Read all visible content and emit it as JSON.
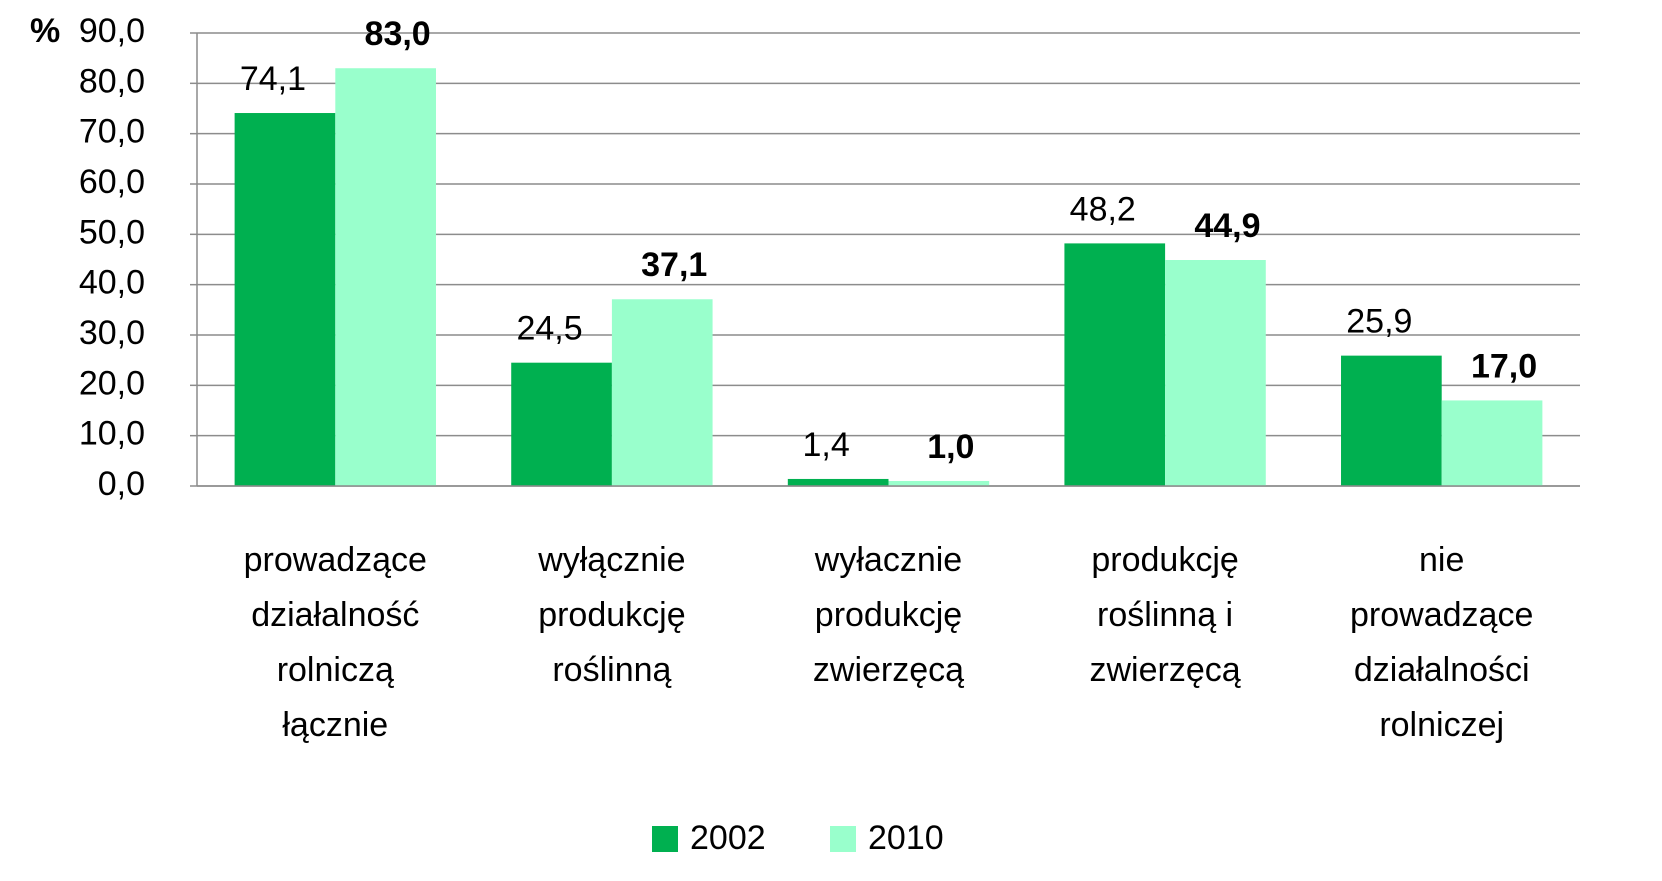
{
  "chart_data": {
    "type": "bar",
    "ylabel": "%",
    "categories": [
      [
        "prowadzące",
        "działalność",
        "rolniczą",
        "łącznie"
      ],
      [
        "wyłącznie",
        "produkcję",
        "roślinną"
      ],
      [
        "wyłacznie",
        "produkcję",
        "zwierzęcą"
      ],
      [
        "produkcję",
        "roślinną i",
        "zwierzęcą"
      ],
      [
        "nie",
        "prowadzące",
        "działalności",
        "rolniczej"
      ]
    ],
    "series": [
      {
        "name": "2002",
        "color": "#00b050",
        "bold_labels": false,
        "values": [
          74.1,
          24.5,
          1.4,
          48.2,
          25.9
        ],
        "value_labels": [
          "74,1",
          "24,5",
          "1,4",
          "48,2",
          "25,9"
        ]
      },
      {
        "name": "2010",
        "color": "#99ffcc",
        "bold_labels": true,
        "values": [
          83.0,
          37.1,
          1.0,
          44.9,
          17.0
        ],
        "value_labels": [
          "83,0",
          "37,1",
          "1,0",
          "44,9",
          "17,0"
        ]
      }
    ],
    "ylim": [
      0,
      90
    ],
    "yticks": [
      {
        "value": 0,
        "label": "0,0"
      },
      {
        "value": 10,
        "label": "10,0"
      },
      {
        "value": 20,
        "label": "20,0"
      },
      {
        "value": 30,
        "label": "30,0"
      },
      {
        "value": 40,
        "label": "40,0"
      },
      {
        "value": 50,
        "label": "50,0"
      },
      {
        "value": 60,
        "label": "60,0"
      },
      {
        "value": 70,
        "label": "70,0"
      },
      {
        "value": 80,
        "label": "80,0"
      },
      {
        "value": 90,
        "label": "90,0"
      }
    ],
    "grid": true,
    "legend": "bottom"
  }
}
